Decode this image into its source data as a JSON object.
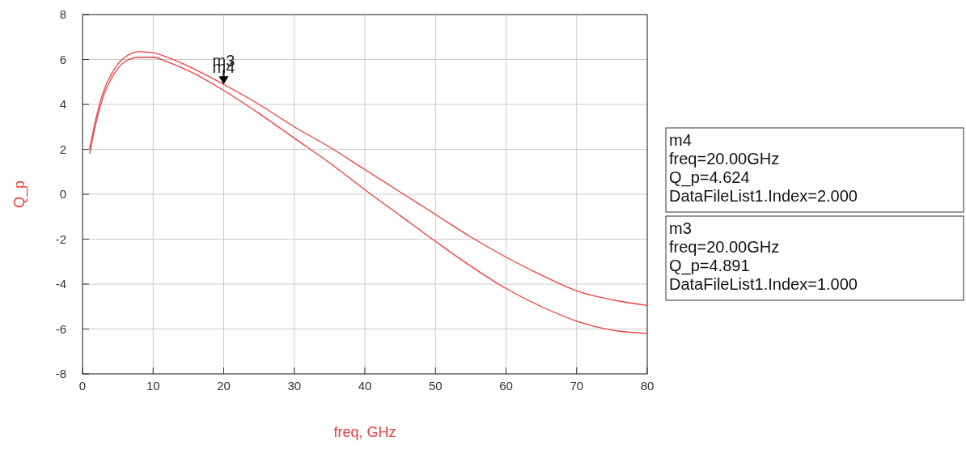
{
  "chart_data": {
    "type": "line",
    "xlabel": "freq, GHz",
    "ylabel": "Q_p",
    "x": [
      1,
      2,
      3,
      4,
      5,
      6,
      8,
      10,
      12,
      15,
      20,
      25,
      30,
      35,
      40,
      45,
      50,
      55,
      60,
      65,
      70,
      75,
      80
    ],
    "series": [
      {
        "color": "#f03c3c",
        "values": [
          2.0,
          3.5,
          4.6,
          5.3,
          5.8,
          6.1,
          6.35,
          6.3,
          6.1,
          5.7,
          4.891,
          4.0,
          3.0,
          2.1,
          1.1,
          0.1,
          -0.9,
          -1.9,
          -2.8,
          -3.6,
          -4.3,
          -4.7,
          -4.95
        ]
      },
      {
        "color": "#f03c3c",
        "values": [
          1.8,
          3.3,
          4.4,
          5.1,
          5.6,
          5.9,
          6.1,
          6.1,
          5.9,
          5.5,
          4.624,
          3.6,
          2.5,
          1.4,
          0.2,
          -0.95,
          -2.1,
          -3.2,
          -4.2,
          -5.0,
          -5.65,
          -6.05,
          -6.2
        ]
      }
    ],
    "xlim": [
      0,
      80
    ],
    "xticks": [
      0,
      10,
      20,
      30,
      40,
      50,
      60,
      70,
      80
    ],
    "ylim": [
      -8,
      8
    ],
    "yticks": [
      -8,
      -6,
      -4,
      -2,
      0,
      2,
      4,
      6,
      8
    ],
    "grid": true,
    "marker": "none",
    "line_style": "solid",
    "annotations": [
      {
        "text": "m3",
        "x": 20,
        "y": 4.891
      },
      {
        "text": "m4",
        "x": 20,
        "y": 4.624
      },
      "m4\nfreq=20.00GHz\nQ_p=4.624\nDataFileList1.Index=2.000",
      "m3\nfreq=20.00GHz\nQ_p=4.891\nDataFileList1.Index=1.000"
    ]
  }
}
